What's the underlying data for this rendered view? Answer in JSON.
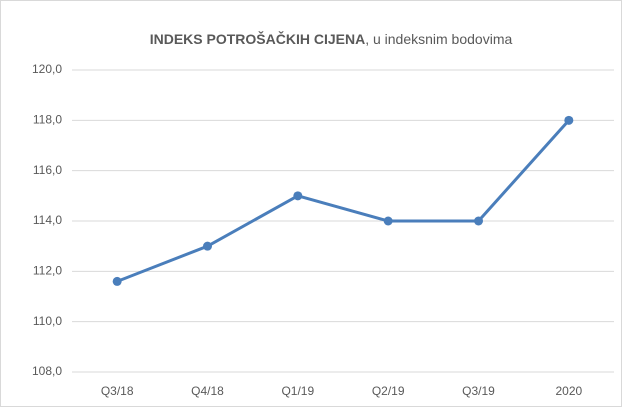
{
  "chart_data": {
    "type": "line",
    "title": "INDEKS POTROŠAČKIH CIJENA",
    "subtitle": ", u indeksnim bodovima",
    "categories": [
      "Q3/18",
      "Q4/18",
      "Q1/19",
      "Q2/19",
      "Q3/19",
      "2020"
    ],
    "series": [
      {
        "name": "Indeks potrošačkih cijena",
        "color": "#4a7ebb",
        "values": [
          111.6,
          113.0,
          115.0,
          114.0,
          114.0,
          118.0
        ]
      }
    ],
    "ylim": [
      108,
      120
    ],
    "yticks": [
      {
        "value": 108,
        "label": "108,0"
      },
      {
        "value": 110,
        "label": "110,0"
      },
      {
        "value": 112,
        "label": "112,0"
      },
      {
        "value": 114,
        "label": "114,0"
      },
      {
        "value": 116,
        "label": "116,0"
      },
      {
        "value": 118,
        "label": "118,0"
      },
      {
        "value": 120,
        "label": "120,0"
      }
    ],
    "grid": true
  }
}
